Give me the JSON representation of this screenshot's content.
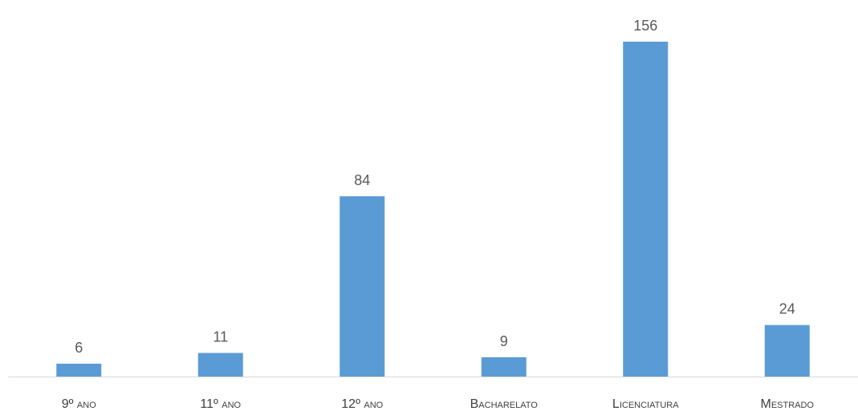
{
  "chart_data": {
    "type": "bar",
    "categories": [
      "9º ano",
      "11º ano",
      "12º ano",
      "Bacharelato",
      "Licenciatura",
      "Mestrado"
    ],
    "values": [
      6,
      11,
      84,
      9,
      156,
      24
    ],
    "title": "",
    "xlabel": "",
    "ylabel": "",
    "ylim": [
      0,
      160
    ],
    "grid": false,
    "legend": "none",
    "data_labels": true,
    "bar_color": "#5B9BD5",
    "axis_color": "#D9D9D9"
  }
}
